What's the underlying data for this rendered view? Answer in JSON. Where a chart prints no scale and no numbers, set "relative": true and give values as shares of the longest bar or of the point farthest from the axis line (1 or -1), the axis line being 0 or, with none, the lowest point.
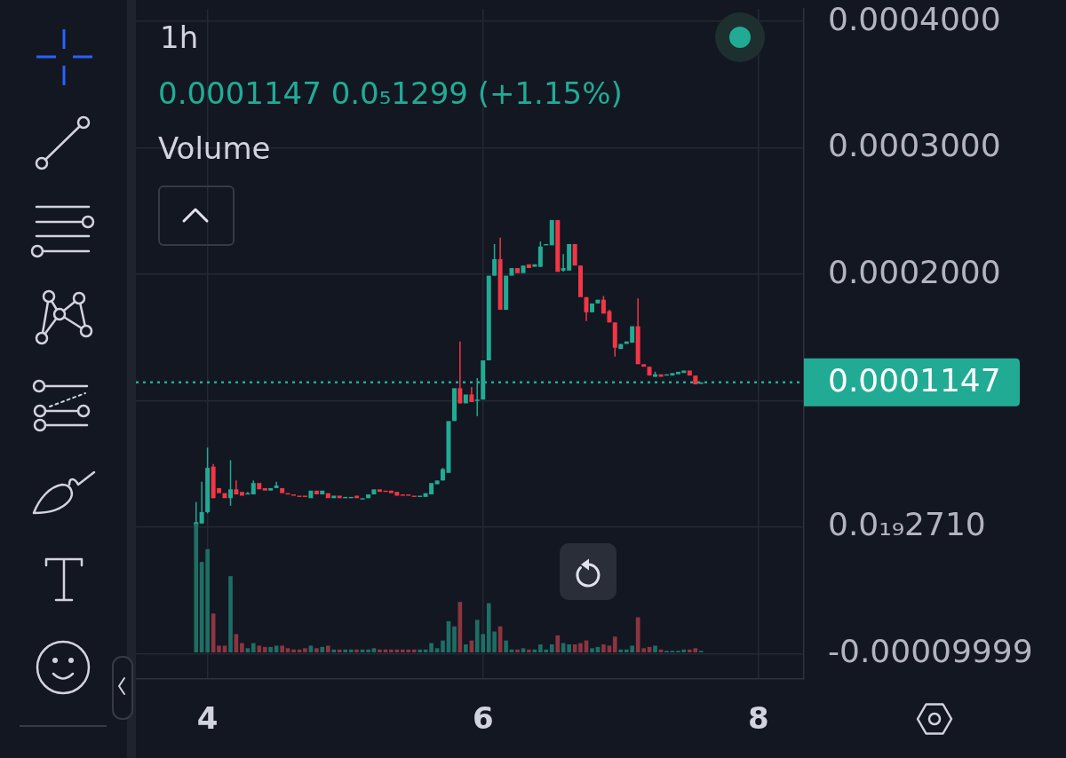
{
  "chart_data": [
    {
      "type": "candlestick",
      "title": "1h",
      "subtitle": "0.0001147 0.0₅1299 (+1.15%)",
      "x": [
        3.917,
        3.958,
        4,
        4.042,
        4.083,
        4.125,
        4.167,
        4.208,
        4.25,
        4.292,
        4.333,
        4.375,
        4.417,
        4.458,
        4.5,
        4.542,
        4.583,
        4.625,
        4.667,
        4.708,
        4.75,
        4.792,
        4.833,
        4.875,
        4.917,
        4.958,
        5,
        5.042,
        5.083,
        5.125,
        5.167,
        5.208,
        5.25,
        5.292,
        5.333,
        5.375,
        5.417,
        5.458,
        5.5,
        5.542,
        5.583,
        5.625,
        5.667,
        5.708,
        5.75,
        5.792,
        5.833,
        5.875,
        5.917,
        5.958,
        6,
        6.042,
        6.083,
        6.125,
        6.167,
        6.208,
        6.25,
        6.292,
        6.333,
        6.375,
        6.417,
        6.458,
        6.5,
        6.542,
        6.583,
        6.625,
        6.667,
        6.708,
        6.75,
        6.792,
        6.833,
        6.875,
        6.917,
        6.958,
        7,
        7.042,
        7.083,
        7.125,
        7.167,
        7.208,
        7.25,
        7.292,
        7.333,
        7.375,
        7.417,
        7.458,
        7.5,
        7.542,
        7.583
      ],
      "ohlc": [
        [
          1e-06,
          2e-05,
          0,
          4e-06
        ],
        [
          3e-06,
          3.6e-05,
          3e-06,
          1.2e-05
        ],
        [
          1.2e-05,
          6.3e-05,
          1.1e-05,
          4.7e-05
        ],
        [
          4.8e-05,
          5e-05,
          2.3e-05,
          2.3e-05
        ],
        [
          3.1e-05,
          3.1e-05,
          2.7e-05,
          2.7e-05
        ],
        [
          2.7e-05,
          2.7e-05,
          2.3e-05,
          2.3e-05
        ],
        [
          2.3e-05,
          5.3e-05,
          1.7e-05,
          3e-05
        ],
        [
          3e-05,
          3.7e-05,
          2.6e-05,
          2.6e-05
        ],
        [
          2.8e-05,
          2.8e-05,
          2.5e-05,
          2.5e-05
        ],
        [
          2.6e-05,
          2.8e-05,
          2.6e-05,
          2.7e-05
        ],
        [
          2.6e-05,
          3.7e-05,
          2.6e-05,
          3.5e-05
        ],
        [
          3.5e-05,
          3.5e-05,
          3e-05,
          3e-05
        ],
        [
          3.1e-05,
          3.1e-05,
          2.9e-05,
          2.9e-05
        ],
        [
          2.9e-05,
          3.1e-05,
          2.9e-05,
          3.1e-05
        ],
        [
          3.1e-05,
          3.6e-05,
          3.1e-05,
          3.3e-05
        ],
        [
          3.1e-05,
          3.1e-05,
          2.7e-05,
          2.7e-05
        ],
        [
          2.7e-05,
          2.7e-05,
          2.6e-05,
          2.6e-05
        ],
        [
          2.6e-05,
          2.6e-05,
          2.5e-05,
          2.5e-05
        ],
        [
          2.5e-05,
          2.5e-05,
          2.4e-05,
          2.4e-05
        ],
        [
          2.5e-05,
          2.5e-05,
          2.4e-05,
          2.4e-05
        ],
        [
          2.3e-05,
          2.9e-05,
          2.3e-05,
          2.9e-05
        ],
        [
          2.9e-05,
          2.9e-05,
          2.6e-05,
          2.6e-05
        ],
        [
          2.6e-05,
          2.9e-05,
          2.6e-05,
          2.9e-05
        ],
        [
          2.7e-05,
          2.7e-05,
          2.3e-05,
          2.3e-05
        ],
        [
          2.3e-05,
          2.5e-05,
          2.3e-05,
          2.5e-05
        ],
        [
          2.5e-05,
          2.5e-05,
          2.3e-05,
          2.3e-05
        ],
        [
          2.3e-05,
          2.4e-05,
          2.3e-05,
          2.4e-05
        ],
        [
          2.3e-05,
          2.4e-05,
          2.3e-05,
          2.4e-05
        ],
        [
          2.5e-05,
          2.5e-05,
          2.3e-05,
          2.3e-05
        ],
        [
          2.2e-05,
          2.3e-05,
          2.2e-05,
          2.3e-05
        ],
        [
          2.3e-05,
          2.6e-05,
          2.3e-05,
          2.6e-05
        ],
        [
          2.6e-05,
          3e-05,
          2.6e-05,
          3e-05
        ],
        [
          3e-05,
          3e-05,
          2.8e-05,
          2.8e-05
        ],
        [
          2.9e-05,
          2.9e-05,
          2.8e-05,
          2.8e-05
        ],
        [
          2.9e-05,
          2.9e-05,
          2.7e-05,
          2.7e-05
        ],
        [
          2.8e-05,
          2.8e-05,
          2.5e-05,
          2.5e-05
        ],
        [
          2.6e-05,
          2.6e-05,
          2.5e-05,
          2.5e-05
        ],
        [
          2.6e-05,
          2.6e-05,
          2.5e-05,
          2.5e-05
        ],
        [
          2.5e-05,
          2.5e-05,
          2.4e-05,
          2.4e-05
        ],
        [
          2.4e-05,
          2.5e-05,
          2.4e-05,
          2.5e-05
        ],
        [
          2.4e-05,
          2.7e-05,
          2.4e-05,
          2.7e-05
        ],
        [
          2.6e-05,
          3.5e-05,
          2.6e-05,
          3.5e-05
        ],
        [
          3.4e-05,
          3.7e-05,
          3.4e-05,
          3.7e-05
        ],
        [
          3.7e-05,
          4.7e-05,
          3.7e-05,
          4.6e-05
        ],
        [
          4.3e-05,
          8.4e-05,
          4.3e-05,
          8.4e-05
        ],
        [
          8.4e-05,
          0.00011,
          8.4e-05,
          0.00011
        ],
        [
          0.00011,
          0.000147,
          9.8e-05,
          9.8e-05
        ],
        [
          9.8e-05,
          0.000105,
          9.8e-05,
          0.000105
        ],
        [
          0.000105,
          0.000111,
          9.9e-05,
          9.9e-05
        ],
        [
          0.0001,
          0.000118,
          8.8e-05,
          0.000101
        ],
        [
          0.000101,
          0.000132,
          0.000101,
          0.000132
        ],
        [
          0.000132,
          0.000199,
          0.000132,
          0.000199
        ],
        [
          0.000199,
          0.000224,
          0.000199,
          0.000212
        ],
        [
          0.000212,
          0.000229,
          0.000172,
          0.000172
        ],
        [
          0.000172,
          0.000199,
          0.000172,
          0.000199
        ],
        [
          0.000199,
          0.000205,
          0.000199,
          0.000205
        ],
        [
          0.000205,
          0.000205,
          0.000201,
          0.000201
        ],
        [
          0.000201,
          0.000207,
          0.000201,
          0.000207
        ],
        [
          0.000208,
          0.000208,
          0.000205,
          0.000205
        ],
        [
          0.000206,
          0.000208,
          0.000206,
          0.000208
        ],
        [
          0.000206,
          0.000226,
          0.000206,
          0.000222
        ],
        [
          0.000223,
          0.000224,
          0.000223,
          0.000224
        ],
        [
          0.000223,
          0.000243,
          0.000223,
          0.000243
        ],
        [
          0.000243,
          0.000243,
          0.000202,
          0.000202
        ],
        [
          0.000203,
          0.000216,
          0.000202,
          0.000205
        ],
        [
          0.000203,
          0.000224,
          0.000203,
          0.000224
        ],
        [
          0.000224,
          0.000224,
          0.000207,
          0.000207
        ],
        [
          0.000207,
          0.000207,
          0.000182,
          0.000182
        ],
        [
          0.000182,
          0.000182,
          0.000163,
          0.00017
        ],
        [
          0.00017,
          0.000177,
          0.00017,
          0.000177
        ],
        [
          0.000177,
          0.00018,
          0.000177,
          0.00018
        ],
        [
          0.00018,
          0.000183,
          0.000169,
          0.000169
        ],
        [
          0.000171,
          0.000172,
          0.000162,
          0.000162
        ],
        [
          0.000162,
          0.000162,
          0.000135,
          0.000142
        ],
        [
          0.000141,
          0.000145,
          0.000141,
          0.000145
        ],
        [
          0.000145,
          0.000147,
          0.000145,
          0.000147
        ],
        [
          0.000146,
          0.000159,
          0.000146,
          0.000159
        ],
        [
          0.000159,
          0.000181,
          0.000129,
          0.000129
        ],
        [
          0.000129,
          0.000129,
          0.000127,
          0.000127
        ],
        [
          0.000127,
          0.000127,
          0.00012,
          0.00012
        ],
        [
          0.000119,
          0.000123,
          0.000119,
          0.000121
        ],
        [
          0.000121,
          0.000121,
          0.000119,
          0.000119
        ],
        [
          0.00012,
          0.000121,
          0.00012,
          0.000121
        ],
        [
          0.00012,
          0.000122,
          0.00012,
          0.000122
        ],
        [
          0.000121,
          0.000123,
          0.000121,
          0.000123
        ],
        [
          0.000122,
          0.000124,
          0.000122,
          0.000124
        ],
        [
          0.000124,
          0.000124,
          0.00012,
          0.00012
        ],
        [
          0.00012,
          0.00012,
          0.000113,
          0.000113
        ],
        [
          0.0001134,
          0.0001147,
          0.0001134,
          0.0001147
        ]
      ],
      "colors": [
        "#22ab94",
        "#22ab94",
        "#22ab94",
        "#f23645",
        "#f23645",
        "#f23645",
        "#22ab94",
        "#f23645",
        "#f23645",
        "#22ab94",
        "#22ab94",
        "#f23645",
        "#f23645",
        "#22ab94",
        "#22ab94",
        "#f23645",
        "#f23645",
        "#f23645",
        "#f23645",
        "#f23645",
        "#22ab94",
        "#f23645",
        "#22ab94",
        "#f23645",
        "#22ab94",
        "#f23645",
        "#22ab94",
        "#22ab94",
        "#f23645",
        "#22ab94",
        "#22ab94",
        "#22ab94",
        "#f23645",
        "#f23645",
        "#f23645",
        "#f23645",
        "#f23645",
        "#f23645",
        "#f23645",
        "#22ab94",
        "#22ab94",
        "#22ab94",
        "#22ab94",
        "#22ab94",
        "#22ab94",
        "#22ab94",
        "#f23645",
        "#22ab94",
        "#f23645",
        "#22ab94",
        "#22ab94",
        "#22ab94",
        "#22ab94",
        "#f23645",
        "#22ab94",
        "#22ab94",
        "#f23645",
        "#22ab94",
        "#f23645",
        "#22ab94",
        "#22ab94",
        "#22ab94",
        "#22ab94",
        "#f23645",
        "#22ab94",
        "#22ab94",
        "#f23645",
        "#f23645",
        "#f23645",
        "#22ab94",
        "#22ab94",
        "#f23645",
        "#f23645",
        "#f23645",
        "#22ab94",
        "#22ab94",
        "#22ab94",
        "#f23645",
        "#f23645",
        "#f23645",
        "#22ab94",
        "#f23645",
        "#22ab94",
        "#22ab94",
        "#22ab94",
        "#22ab94",
        "#f23645",
        "#f23645",
        "#22ab94"
      ],
      "xlim": [
        3.48,
        8.33
      ],
      "xticks": [
        4,
        6,
        8
      ],
      "ylim": [
        -0.00012,
        0.00041
      ],
      "yticks": [
        {
          "value": 0.0004,
          "label": "0.0004000"
        },
        {
          "value": 0.0003,
          "label": "0.0003000"
        },
        {
          "value": 0.0002,
          "label": "0.0002000"
        },
        {
          "value": 0.0001,
          "label": null
        },
        {
          "value": 2.71e-23,
          "label": "0.0₁₉2710"
        },
        {
          "value": -9.999e-05,
          "label": "-0.00009999"
        }
      ],
      "grid": true,
      "ref_lines": [
        {
          "axis": "y",
          "value": 0.0001147,
          "label": "0.0001147",
          "color": "#22ab94",
          "line_style": "dotted"
        }
      ]
    },
    {
      "type": "bar",
      "title": "Volume",
      "relative": true,
      "tick_labels": false,
      "xlim": [
        3.48,
        8.33
      ],
      "x": [
        3.917,
        3.958,
        4,
        4.042,
        4.083,
        4.125,
        4.167,
        4.208,
        4.25,
        4.292,
        4.333,
        4.375,
        4.417,
        4.458,
        4.5,
        4.542,
        4.583,
        4.625,
        4.667,
        4.708,
        4.75,
        4.792,
        4.833,
        4.875,
        4.917,
        4.958,
        5,
        5.042,
        5.083,
        5.125,
        5.167,
        5.208,
        5.25,
        5.292,
        5.333,
        5.375,
        5.417,
        5.458,
        5.5,
        5.542,
        5.583,
        5.625,
        5.667,
        5.708,
        5.75,
        5.792,
        5.833,
        5.875,
        5.917,
        5.958,
        6,
        6.042,
        6.083,
        6.125,
        6.167,
        6.208,
        6.25,
        6.292,
        6.333,
        6.375,
        6.417,
        6.458,
        6.5,
        6.542,
        6.583,
        6.625,
        6.667,
        6.708,
        6.75,
        6.792,
        6.833,
        6.875,
        6.917,
        6.958,
        7,
        7.042,
        7.083,
        7.125,
        7.167,
        7.208,
        7.25,
        7.292,
        7.333,
        7.375,
        7.417,
        7.458,
        7.5,
        7.542,
        7.583
      ],
      "values": [
        1,
        0.7,
        0.8,
        0.3,
        0.05,
        0.05,
        0.59,
        0.14,
        0.07,
        0.03,
        0.07,
        0.05,
        0.04,
        0.04,
        0.05,
        0.05,
        0.03,
        0.02,
        0.02,
        0.03,
        0.05,
        0.03,
        0.04,
        0.05,
        0.02,
        0.02,
        0.02,
        0.02,
        0.02,
        0.02,
        0.02,
        0.03,
        0.02,
        0.02,
        0.02,
        0.02,
        0.02,
        0.02,
        0.02,
        0.02,
        0.02,
        0.07,
        0.03,
        0.09,
        0.24,
        0.2,
        0.39,
        0.06,
        0.09,
        0.25,
        0.14,
        0.38,
        0.16,
        0.2,
        0.09,
        0.02,
        0.02,
        0.03,
        0.02,
        0.02,
        0.06,
        0.02,
        0.06,
        0.13,
        0.07,
        0.06,
        0.06,
        0.07,
        0.09,
        0.03,
        0.04,
        0.06,
        0.05,
        0.12,
        0.02,
        0.02,
        0.05,
        0.27,
        0.03,
        0.04,
        0.05,
        0.02,
        0.01,
        0.01,
        0.01,
        0.02,
        0.02,
        0.03,
        0.01
      ],
      "colors": [
        "#1e6e65",
        "#1e6e65",
        "#1e6e65",
        "#8c3540",
        "#8c3540",
        "#8c3540",
        "#1e6e65",
        "#8c3540",
        "#8c3540",
        "#1e6e65",
        "#1e6e65",
        "#8c3540",
        "#8c3540",
        "#1e6e65",
        "#1e6e65",
        "#8c3540",
        "#8c3540",
        "#8c3540",
        "#8c3540",
        "#8c3540",
        "#1e6e65",
        "#8c3540",
        "#1e6e65",
        "#8c3540",
        "#1e6e65",
        "#8c3540",
        "#1e6e65",
        "#1e6e65",
        "#8c3540",
        "#1e6e65",
        "#1e6e65",
        "#1e6e65",
        "#8c3540",
        "#8c3540",
        "#8c3540",
        "#8c3540",
        "#8c3540",
        "#8c3540",
        "#8c3540",
        "#1e6e65",
        "#1e6e65",
        "#1e6e65",
        "#1e6e65",
        "#1e6e65",
        "#1e6e65",
        "#1e6e65",
        "#8c3540",
        "#1e6e65",
        "#8c3540",
        "#1e6e65",
        "#1e6e65",
        "#1e6e65",
        "#1e6e65",
        "#8c3540",
        "#1e6e65",
        "#1e6e65",
        "#8c3540",
        "#1e6e65",
        "#8c3540",
        "#1e6e65",
        "#1e6e65",
        "#1e6e65",
        "#1e6e65",
        "#8c3540",
        "#1e6e65",
        "#1e6e65",
        "#8c3540",
        "#8c3540",
        "#8c3540",
        "#1e6e65",
        "#1e6e65",
        "#8c3540",
        "#8c3540",
        "#8c3540",
        "#1e6e65",
        "#1e6e65",
        "#1e6e65",
        "#8c3540",
        "#8c3540",
        "#8c3540",
        "#1e6e65",
        "#8c3540",
        "#1e6e65",
        "#1e6e65",
        "#1e6e65",
        "#1e6e65",
        "#8c3540",
        "#8c3540",
        "#1e6e65"
      ]
    }
  ]
}
